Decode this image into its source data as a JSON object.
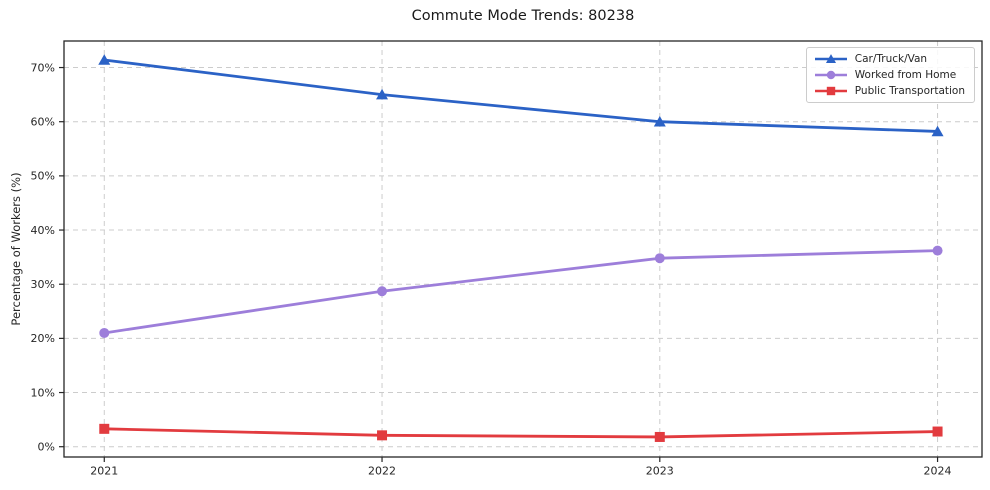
{
  "title": "Commute Mode Trends: 80238",
  "chart_data": {
    "type": "line",
    "title": "Commute Mode Trends: 80238",
    "categories": [
      "2021",
      "2022",
      "2023",
      "2024"
    ],
    "series": [
      {
        "name": "Car/Truck/Van",
        "marker": "triangle",
        "color": "#2b62c6",
        "values": [
          71.4,
          65.0,
          60.0,
          58.2
        ]
      },
      {
        "name": "Worked from Home",
        "marker": "circle",
        "color": "#9d7eda",
        "values": [
          21.0,
          28.7,
          34.8,
          36.2
        ]
      },
      {
        "name": "Public Transportation",
        "marker": "square",
        "color": "#e23b3f",
        "values": [
          3.3,
          2.1,
          1.8,
          2.8
        ]
      }
    ],
    "xlabel": "",
    "ylabel": "Percentage of Workers (%)",
    "y_ticks": {
      "values": [
        0,
        10,
        20,
        30,
        40,
        50,
        60,
        70
      ],
      "labels": [
        "0%",
        "10%",
        "20%",
        "30%",
        "40%",
        "50%",
        "60%",
        "70%"
      ]
    },
    "ylim": [
      -1.9,
      74.9
    ],
    "xlim": [
      -0.145,
      3.16
    ],
    "grid": true,
    "legend_position": "upper right",
    "colors": {
      "grid": "#cccccc",
      "spine": "#262626",
      "tick_label": "#262626",
      "background": "#ffffff"
    }
  }
}
